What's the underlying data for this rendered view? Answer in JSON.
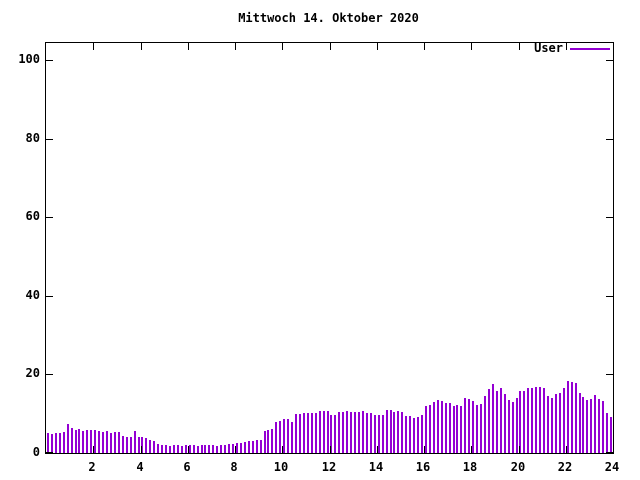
{
  "title": "Mittwoch 14. Oktober 2020",
  "legend": {
    "label": "User",
    "color": "#9400d3"
  },
  "chart_data": {
    "type": "bar",
    "title": "Mittwoch 14. Oktober 2020",
    "series_name": "User",
    "bar_color": "#9400d3",
    "x_unit": "hour of day",
    "x_start_hour": 0,
    "interval_minutes": 10,
    "xlim": [
      0,
      24
    ],
    "ylim": [
      0,
      104
    ],
    "x_ticks": [
      2,
      4,
      6,
      8,
      10,
      12,
      14,
      16,
      18,
      20,
      22,
      24
    ],
    "y_ticks": [
      0,
      20,
      40,
      60,
      80,
      100
    ],
    "grid": false,
    "legend_position": "top-right",
    "values": [
      5.0,
      4.8,
      5.2,
      5.0,
      5.3,
      7.3,
      6.5,
      5.8,
      6.0,
      5.7,
      5.9,
      5.8,
      5.8,
      5.6,
      5.3,
      5.5,
      5.2,
      5.4,
      5.3,
      4.3,
      4.1,
      4.2,
      5.5,
      4.0,
      4.0,
      3.9,
      3.2,
      3.1,
      2.2,
      2.0,
      2.0,
      1.9,
      2.0,
      2.0,
      1.9,
      2.0,
      2.0,
      2.0,
      1.9,
      2.0,
      2.0,
      2.0,
      2.0,
      1.9,
      2.0,
      2.0,
      2.3,
      2.4,
      2.5,
      2.6,
      2.8,
      3.0,
      3.0,
      3.3,
      3.4,
      5.5,
      5.8,
      6.0,
      8.0,
      8.2,
      8.7,
      8.6,
      8.0,
      9.9,
      10.0,
      10.2,
      10.2,
      10.3,
      10.2,
      10.8,
      10.8,
      10.7,
      9.7,
      9.8,
      10.5,
      10.4,
      10.6,
      10.5,
      10.5,
      10.4,
      10.6,
      10.3,
      10.2,
      9.8,
      9.7,
      9.6,
      11.0,
      10.9,
      10.5,
      10.6,
      10.4,
      9.5,
      9.4,
      9.0,
      9.1,
      9.7,
      12.0,
      12.2,
      13.0,
      13.5,
      13.2,
      12.8,
      12.7,
      12.0,
      12.1,
      12.0,
      14.1,
      13.7,
      13.2,
      12.3,
      12.5,
      14.6,
      16.2,
      17.6,
      15.9,
      16.5,
      15.1,
      13.4,
      13.0,
      14.1,
      15.8,
      15.8,
      16.6,
      16.6,
      16.9,
      16.9,
      16.6,
      14.5,
      14.1,
      14.9,
      15.3,
      16.6,
      18.3,
      18.0,
      17.8,
      15.3,
      14.2,
      13.5,
      13.7,
      14.8,
      13.8,
      13.2,
      10.2,
      9.3
    ]
  }
}
